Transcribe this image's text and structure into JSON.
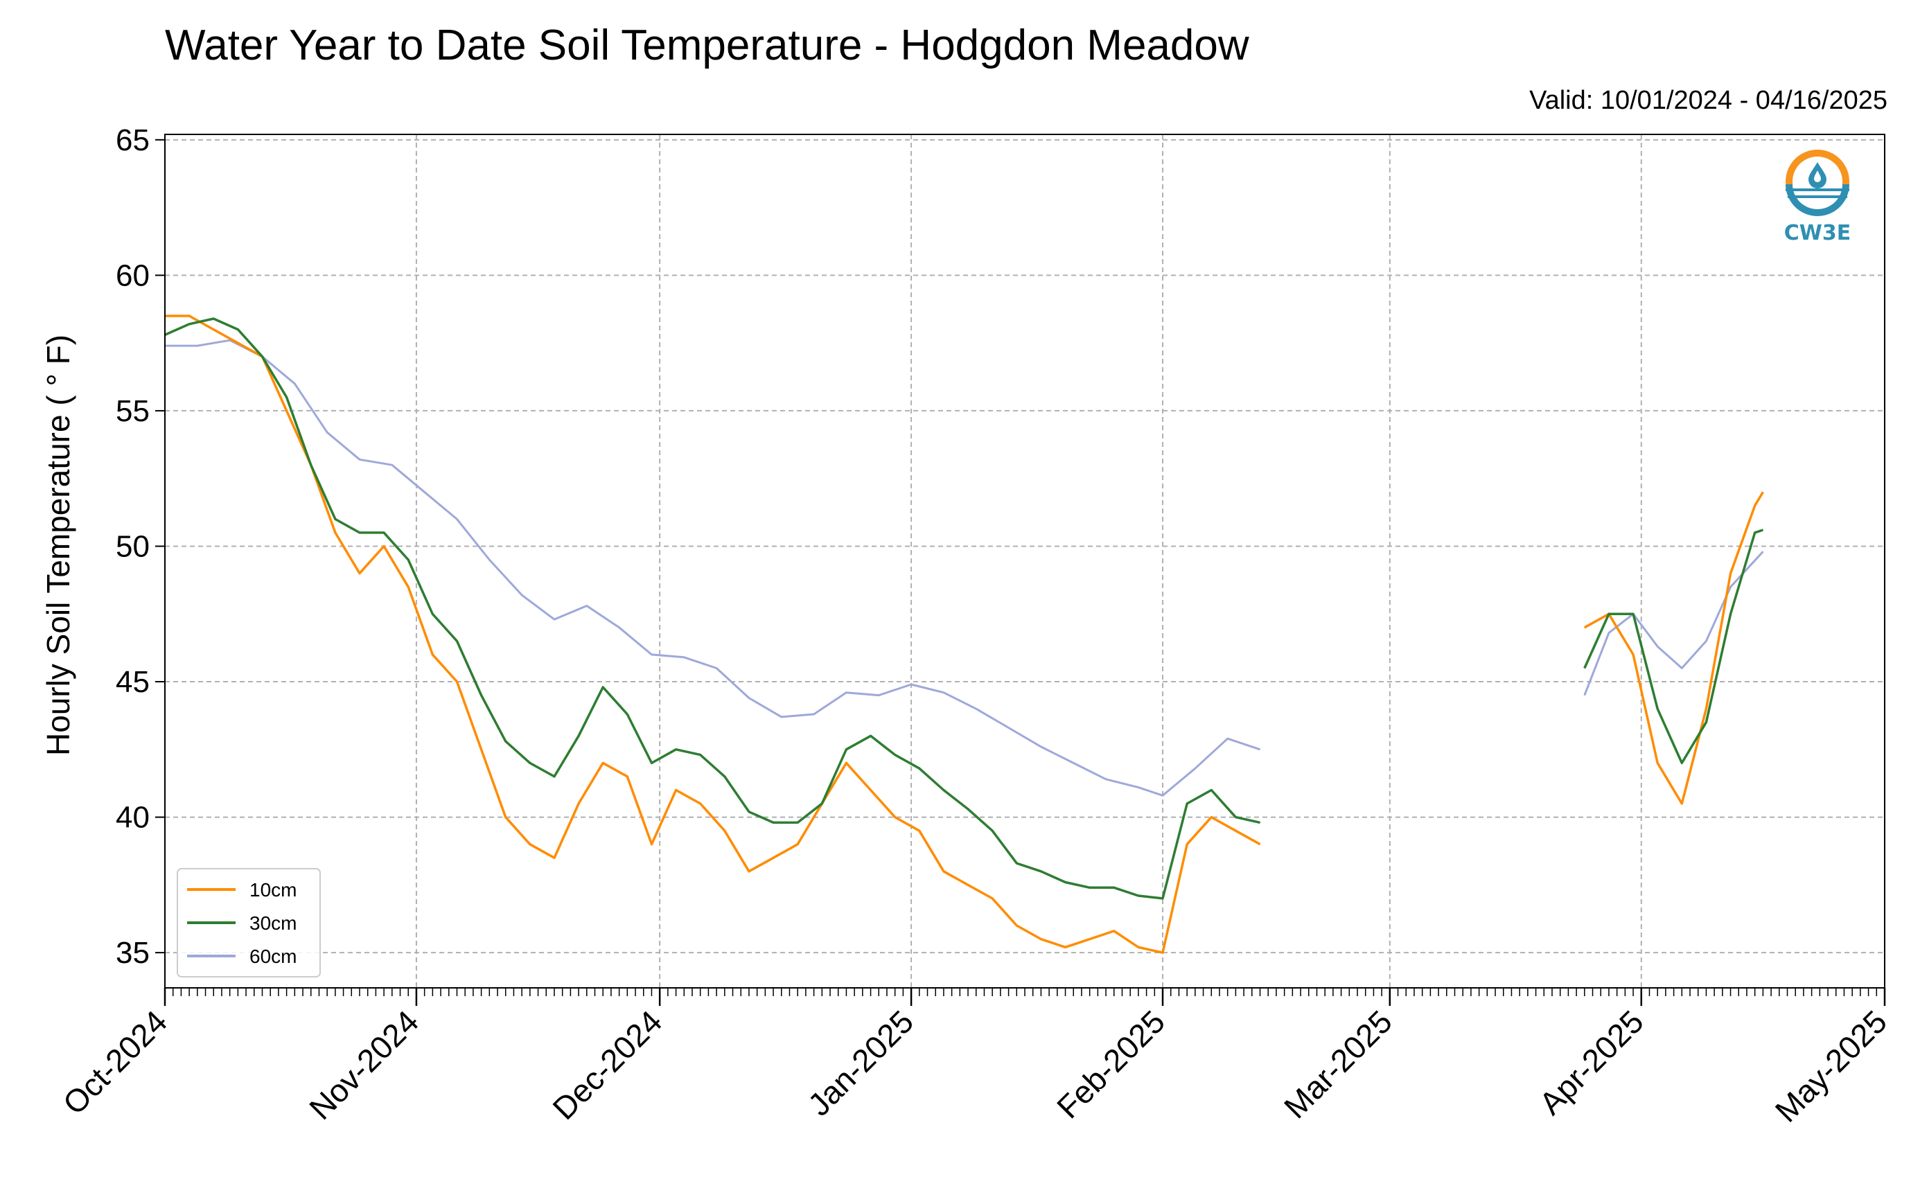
{
  "chart_data": {
    "type": "line",
    "title": "Water Year to Date Soil Temperature - Hodgdon Meadow",
    "subtitle": "Valid: 10/01/2024 - 04/16/2025",
    "ylabel": "Hourly Soil Temperature ( ° F)",
    "xlabel": "",
    "xlim": [
      "2024-10-01",
      "2025-05-01"
    ],
    "ylim": [
      33.7,
      65.2
    ],
    "yticks": [
      "35",
      "40",
      "45",
      "50",
      "55",
      "60",
      "65"
    ],
    "xticks": [
      "Oct-2024",
      "Nov-2024",
      "Dec-2024",
      "Jan-2025",
      "Feb-2025",
      "Mar-2025",
      "Apr-2025",
      "May-2025"
    ],
    "xtick_dates": [
      "2024-10-01",
      "2024-11-01",
      "2024-12-01",
      "2025-01-01",
      "2025-02-01",
      "2025-03-01",
      "2025-04-01",
      "2025-05-01"
    ],
    "grid": true,
    "legend_position": "lower-left",
    "series": [
      {
        "name": "10cm",
        "color": "#ff8c00",
        "x": [
          "2024-10-01",
          "2024-10-04",
          "2024-10-07",
          "2024-10-10",
          "2024-10-13",
          "2024-10-16",
          "2024-10-19",
          "2024-10-22",
          "2024-10-25",
          "2024-10-28",
          "2024-10-31",
          "2024-11-03",
          "2024-11-06",
          "2024-11-09",
          "2024-11-12",
          "2024-11-15",
          "2024-11-18",
          "2024-11-21",
          "2024-11-24",
          "2024-11-27",
          "2024-11-30",
          "2024-12-03",
          "2024-12-06",
          "2024-12-09",
          "2024-12-12",
          "2024-12-15",
          "2024-12-18",
          "2024-12-21",
          "2024-12-24",
          "2024-12-27",
          "2024-12-30",
          "2025-01-02",
          "2025-01-05",
          "2025-01-08",
          "2025-01-11",
          "2025-01-14",
          "2025-01-17",
          "2025-01-20",
          "2025-01-23",
          "2025-01-26",
          "2025-01-29",
          "2025-02-01",
          "2025-02-04",
          "2025-02-07",
          "2025-02-10",
          "2025-02-13",
          "2025-03-25",
          "2025-03-28",
          "2025-03-31",
          "2025-04-03",
          "2025-04-06",
          "2025-04-09",
          "2025-04-12",
          "2025-04-15",
          "2025-04-16"
        ],
        "y": [
          58.5,
          58.5,
          58.0,
          57.5,
          57.0,
          55.0,
          53.0,
          50.5,
          49.0,
          50.0,
          48.5,
          46.0,
          45.0,
          42.5,
          40.0,
          39.0,
          38.5,
          40.5,
          42.0,
          41.5,
          39.0,
          41.0,
          40.5,
          39.5,
          38.0,
          38.5,
          39.0,
          40.5,
          42.0,
          41.0,
          40.0,
          39.5,
          38.0,
          37.5,
          37.0,
          36.0,
          35.5,
          35.2,
          35.5,
          35.8,
          35.2,
          35.0,
          39.0,
          40.0,
          39.5,
          39.0,
          47.0,
          47.5,
          46.0,
          42.0,
          40.5,
          44.0,
          49.0,
          51.5,
          52.0
        ]
      },
      {
        "name": "30cm",
        "color": "#2e7d32",
        "x": [
          "2024-10-01",
          "2024-10-04",
          "2024-10-07",
          "2024-10-10",
          "2024-10-13",
          "2024-10-16",
          "2024-10-19",
          "2024-10-22",
          "2024-10-25",
          "2024-10-28",
          "2024-10-31",
          "2024-11-03",
          "2024-11-06",
          "2024-11-09",
          "2024-11-12",
          "2024-11-15",
          "2024-11-18",
          "2024-11-21",
          "2024-11-24",
          "2024-11-27",
          "2024-11-30",
          "2024-12-03",
          "2024-12-06",
          "2024-12-09",
          "2024-12-12",
          "2024-12-15",
          "2024-12-18",
          "2024-12-21",
          "2024-12-24",
          "2024-12-27",
          "2024-12-30",
          "2025-01-02",
          "2025-01-05",
          "2025-01-08",
          "2025-01-11",
          "2025-01-14",
          "2025-01-17",
          "2025-01-20",
          "2025-01-23",
          "2025-01-26",
          "2025-01-29",
          "2025-02-01",
          "2025-02-04",
          "2025-02-07",
          "2025-02-10",
          "2025-02-13",
          "2025-03-25",
          "2025-03-28",
          "2025-03-31",
          "2025-04-03",
          "2025-04-06",
          "2025-04-09",
          "2025-04-12",
          "2025-04-15",
          "2025-04-16"
        ],
        "y": [
          57.8,
          58.2,
          58.4,
          58.0,
          57.0,
          55.5,
          53.0,
          51.0,
          50.5,
          50.5,
          49.5,
          47.5,
          46.5,
          44.5,
          42.8,
          42.0,
          41.5,
          43.0,
          44.8,
          43.8,
          42.0,
          42.5,
          42.3,
          41.5,
          40.2,
          39.8,
          39.8,
          40.5,
          42.5,
          43.0,
          42.3,
          41.8,
          41.0,
          40.3,
          39.5,
          38.3,
          38.0,
          37.6,
          37.4,
          37.4,
          37.1,
          37.0,
          40.5,
          41.0,
          40.0,
          39.8,
          45.5,
          47.5,
          47.5,
          44.0,
          42.0,
          43.5,
          47.5,
          50.5,
          50.6
        ]
      },
      {
        "name": "60cm",
        "color": "#9fa8da",
        "x": [
          "2024-10-01",
          "2024-10-05",
          "2024-10-09",
          "2024-10-13",
          "2024-10-17",
          "2024-10-21",
          "2024-10-25",
          "2024-10-29",
          "2024-11-02",
          "2024-11-06",
          "2024-11-10",
          "2024-11-14",
          "2024-11-18",
          "2024-11-22",
          "2024-11-26",
          "2024-11-30",
          "2024-12-04",
          "2024-12-08",
          "2024-12-12",
          "2024-12-16",
          "2024-12-20",
          "2024-12-24",
          "2024-12-28",
          "2025-01-01",
          "2025-01-05",
          "2025-01-09",
          "2025-01-13",
          "2025-01-17",
          "2025-01-21",
          "2025-01-25",
          "2025-01-29",
          "2025-02-01",
          "2025-02-05",
          "2025-02-09",
          "2025-02-13",
          "2025-03-25",
          "2025-03-28",
          "2025-03-31",
          "2025-04-03",
          "2025-04-06",
          "2025-04-09",
          "2025-04-12",
          "2025-04-16"
        ],
        "y": [
          57.4,
          57.4,
          57.6,
          57.0,
          56.0,
          54.2,
          53.2,
          53.0,
          52.0,
          51.0,
          49.5,
          48.2,
          47.3,
          47.8,
          47.0,
          46.0,
          45.9,
          45.5,
          44.4,
          43.7,
          43.8,
          44.6,
          44.5,
          44.9,
          44.6,
          44.0,
          43.3,
          42.6,
          42.0,
          41.4,
          41.1,
          40.8,
          41.8,
          42.9,
          42.5,
          44.5,
          46.8,
          47.5,
          46.3,
          45.5,
          46.5,
          48.5,
          49.8
        ]
      }
    ]
  },
  "logo": {
    "text": "CW3E"
  }
}
